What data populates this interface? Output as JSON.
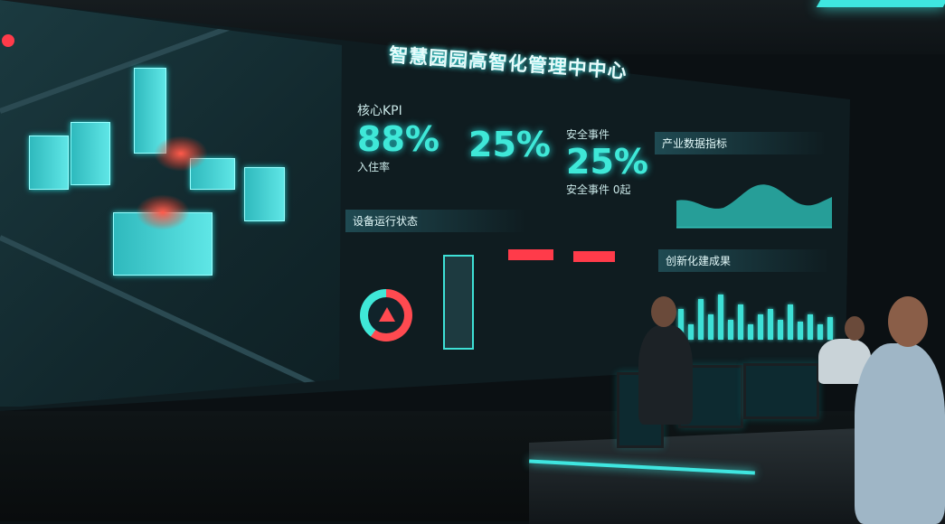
{
  "screen": {
    "title": "智慧园园高智化管理中中心",
    "kpi": [
      {
        "label": "核心KPI",
        "value": "88%",
        "caption": "入住率"
      },
      {
        "label": "",
        "value": "25%",
        "caption": ""
      },
      {
        "label": "安全事件",
        "value": "25%",
        "caption": "安全事件 0起"
      }
    ],
    "device_status": {
      "header": "设备运行状态"
    },
    "trend_panel": {
      "header": "产业数据指标"
    },
    "bar_panel": {
      "header": "创新化建成果"
    }
  },
  "colors": {
    "accent": "#3fe8d8",
    "alert": "#ff4a50",
    "background": "#0f1c20"
  },
  "ring_alert_fraction": 0.6
}
